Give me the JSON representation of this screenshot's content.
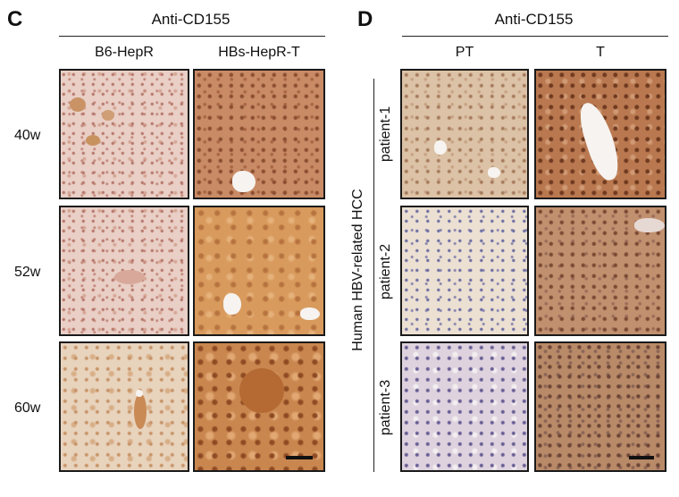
{
  "panel_c": {
    "letter": "C",
    "header": "Anti-CD155",
    "columns": [
      "B6-HepR",
      "HBs-HepR-T"
    ],
    "rows": [
      "40w",
      "52w",
      "60w"
    ]
  },
  "panel_d": {
    "letter": "D",
    "header": "Anti-CD155",
    "columns": [
      "PT",
      "T"
    ],
    "group_label": "Human HBV-related HCC",
    "rows": [
      "patient-1",
      "patient-2",
      "patient-3"
    ]
  },
  "colors": {
    "hepr_stain": "#e9cfc6",
    "hbs_stain": "#c98b66",
    "pt_stain": "#ebe0d2",
    "tumor_stain": "#b9784f"
  }
}
